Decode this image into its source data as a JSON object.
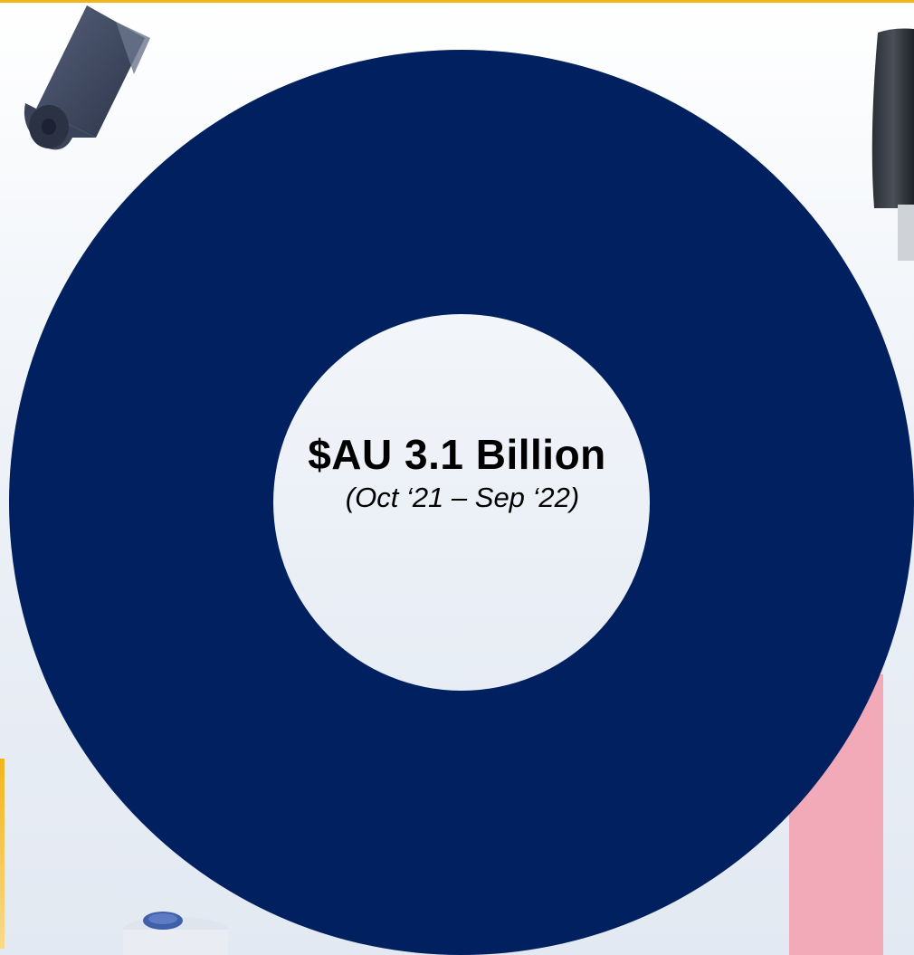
{
  "market": {
    "total": "$AU 3.1 Billion",
    "period": "(Oct ‘21 – Sep ‘22)"
  },
  "colors": {
    "ring": "#002060",
    "accent": "#f2b51c",
    "hole": "#ffffff"
  },
  "decorations": [
    "bin-liner-roll-image",
    "paper-towel-dispenser-image",
    "cleaning-bottle-image",
    "wipes-pack-image"
  ]
}
